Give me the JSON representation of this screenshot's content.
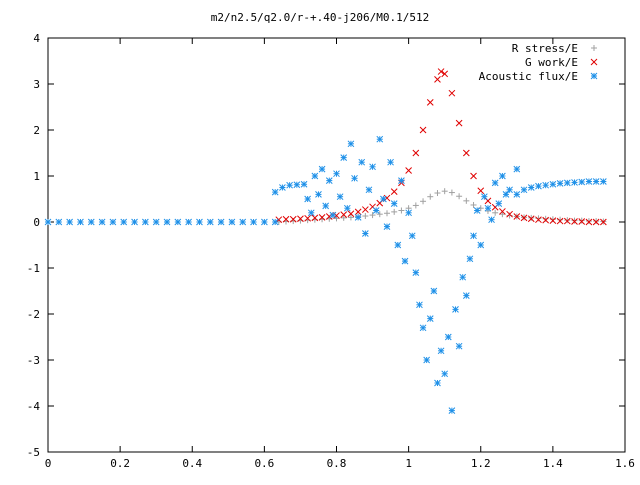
{
  "chart_data": {
    "type": "scatter",
    "title": "m2/n2.5/q2.0/r-+.40-j206/M0.1/512",
    "xlabel": "",
    "ylabel": "",
    "xlim": [
      0,
      1.6
    ],
    "ylim": [
      -5,
      4
    ],
    "x_ticks": [
      0,
      0.2,
      0.4,
      0.6,
      0.8,
      1,
      1.2,
      1.4,
      1.6
    ],
    "x_tick_labels": [
      "0",
      "0.2",
      "0.4",
      "0.6",
      "0.8",
      "1",
      "1.2",
      "1.4",
      "1.6"
    ],
    "y_ticks": [
      -5,
      -4,
      -3,
      -2,
      -1,
      0,
      1,
      2,
      3,
      4
    ],
    "y_tick_labels": [
      "-5",
      "-4",
      "-3",
      "-2",
      "-1",
      "0",
      "1",
      "2",
      "3",
      "4"
    ],
    "grid": false,
    "legend_position": "top-right",
    "series": [
      {
        "name": "R stress/E",
        "marker": "plus",
        "color": "#a0a0a0",
        "points": [
          [
            0.64,
            0.0
          ],
          [
            0.66,
            0.01
          ],
          [
            0.68,
            0.02
          ],
          [
            0.7,
            0.03
          ],
          [
            0.72,
            0.04
          ],
          [
            0.74,
            0.05
          ],
          [
            0.76,
            0.06
          ],
          [
            0.78,
            0.07
          ],
          [
            0.8,
            0.08
          ],
          [
            0.82,
            0.09
          ],
          [
            0.84,
            0.1
          ],
          [
            0.86,
            0.12
          ],
          [
            0.88,
            0.13
          ],
          [
            0.9,
            0.15
          ],
          [
            0.92,
            0.17
          ],
          [
            0.94,
            0.19
          ],
          [
            0.96,
            0.22
          ],
          [
            0.98,
            0.25
          ],
          [
            1.0,
            0.3
          ],
          [
            1.02,
            0.36
          ],
          [
            1.04,
            0.45
          ],
          [
            1.06,
            0.55
          ],
          [
            1.08,
            0.63
          ],
          [
            1.1,
            0.67
          ],
          [
            1.12,
            0.64
          ],
          [
            1.14,
            0.56
          ],
          [
            1.16,
            0.46
          ],
          [
            1.18,
            0.37
          ],
          [
            1.2,
            0.3
          ],
          [
            1.22,
            0.24
          ],
          [
            1.24,
            0.2
          ],
          [
            1.26,
            0.17
          ],
          [
            1.28,
            0.14
          ],
          [
            1.3,
            0.12
          ],
          [
            1.32,
            0.1
          ],
          [
            1.34,
            0.09
          ],
          [
            1.36,
            0.08
          ],
          [
            1.38,
            0.07
          ],
          [
            1.4,
            0.06
          ],
          [
            1.42,
            0.05
          ],
          [
            1.44,
            0.04
          ],
          [
            1.46,
            0.03
          ],
          [
            1.48,
            0.03
          ],
          [
            1.5,
            0.02
          ],
          [
            1.52,
            0.02
          ],
          [
            1.54,
            0.01
          ]
        ]
      },
      {
        "name": "G work/E",
        "marker": "cross",
        "color": "#e00000",
        "points": [
          [
            0.64,
            0.05
          ],
          [
            0.66,
            0.06
          ],
          [
            0.68,
            0.06
          ],
          [
            0.7,
            0.07
          ],
          [
            0.72,
            0.08
          ],
          [
            0.74,
            0.09
          ],
          [
            0.76,
            0.1
          ],
          [
            0.78,
            0.12
          ],
          [
            0.8,
            0.14
          ],
          [
            0.82,
            0.16
          ],
          [
            0.84,
            0.18
          ],
          [
            0.86,
            0.22
          ],
          [
            0.88,
            0.27
          ],
          [
            0.9,
            0.33
          ],
          [
            0.92,
            0.41
          ],
          [
            0.94,
            0.52
          ],
          [
            0.96,
            0.66
          ],
          [
            0.98,
            0.85
          ],
          [
            1.0,
            1.12
          ],
          [
            1.02,
            1.5
          ],
          [
            1.04,
            2.0
          ],
          [
            1.06,
            2.6
          ],
          [
            1.08,
            3.1
          ],
          [
            1.09,
            3.27
          ],
          [
            1.1,
            3.22
          ],
          [
            1.12,
            2.8
          ],
          [
            1.14,
            2.15
          ],
          [
            1.16,
            1.5
          ],
          [
            1.18,
            1.0
          ],
          [
            1.2,
            0.68
          ],
          [
            1.22,
            0.46
          ],
          [
            1.24,
            0.32
          ],
          [
            1.26,
            0.23
          ],
          [
            1.28,
            0.17
          ],
          [
            1.3,
            0.12
          ],
          [
            1.32,
            0.09
          ],
          [
            1.34,
            0.07
          ],
          [
            1.36,
            0.05
          ],
          [
            1.38,
            0.04
          ],
          [
            1.4,
            0.03
          ],
          [
            1.42,
            0.02
          ],
          [
            1.44,
            0.02
          ],
          [
            1.46,
            0.01
          ],
          [
            1.48,
            0.01
          ],
          [
            1.5,
            0.0
          ],
          [
            1.52,
            0.0
          ],
          [
            1.54,
            0.0
          ]
        ]
      },
      {
        "name": "Acoustic flux/E",
        "marker": "star",
        "color": "#1e90e8",
        "points": [
          [
            0.0,
            0.0
          ],
          [
            0.03,
            0.0
          ],
          [
            0.06,
            0.0
          ],
          [
            0.09,
            0.0
          ],
          [
            0.12,
            0.0
          ],
          [
            0.15,
            0.0
          ],
          [
            0.18,
            0.0
          ],
          [
            0.21,
            0.0
          ],
          [
            0.24,
            0.0
          ],
          [
            0.27,
            0.0
          ],
          [
            0.3,
            0.0
          ],
          [
            0.33,
            0.0
          ],
          [
            0.36,
            0.0
          ],
          [
            0.39,
            0.0
          ],
          [
            0.42,
            0.0
          ],
          [
            0.45,
            0.0
          ],
          [
            0.48,
            0.0
          ],
          [
            0.51,
            0.0
          ],
          [
            0.54,
            0.0
          ],
          [
            0.57,
            0.0
          ],
          [
            0.6,
            0.0
          ],
          [
            0.63,
            0.0
          ],
          [
            0.63,
            0.65
          ],
          [
            0.65,
            0.75
          ],
          [
            0.67,
            0.8
          ],
          [
            0.69,
            0.81
          ],
          [
            0.71,
            0.82
          ],
          [
            0.72,
            0.5
          ],
          [
            0.73,
            0.2
          ],
          [
            0.74,
            1.0
          ],
          [
            0.75,
            0.6
          ],
          [
            0.76,
            1.15
          ],
          [
            0.77,
            0.35
          ],
          [
            0.78,
            0.9
          ],
          [
            0.79,
            0.15
          ],
          [
            0.8,
            1.05
          ],
          [
            0.81,
            0.55
          ],
          [
            0.82,
            1.4
          ],
          [
            0.83,
            0.3
          ],
          [
            0.84,
            1.7
          ],
          [
            0.85,
            0.95
          ],
          [
            0.86,
            0.1
          ],
          [
            0.87,
            1.3
          ],
          [
            0.88,
            -0.25
          ],
          [
            0.89,
            0.7
          ],
          [
            0.9,
            1.2
          ],
          [
            0.91,
            0.25
          ],
          [
            0.92,
            1.8
          ],
          [
            0.93,
            0.5
          ],
          [
            0.94,
            -0.1
          ],
          [
            0.95,
            1.3
          ],
          [
            0.96,
            0.4
          ],
          [
            0.97,
            -0.5
          ],
          [
            0.98,
            0.9
          ],
          [
            0.99,
            -0.85
          ],
          [
            1.0,
            0.2
          ],
          [
            1.01,
            -0.3
          ],
          [
            1.02,
            -1.1
          ],
          [
            1.03,
            -1.8
          ],
          [
            1.04,
            -2.3
          ],
          [
            1.05,
            -3.0
          ],
          [
            1.06,
            -2.1
          ],
          [
            1.07,
            -1.5
          ],
          [
            1.08,
            -3.5
          ],
          [
            1.09,
            -2.8
          ],
          [
            1.1,
            -3.3
          ],
          [
            1.11,
            -2.5
          ],
          [
            1.12,
            -4.1
          ],
          [
            1.13,
            -1.9
          ],
          [
            1.14,
            -2.7
          ],
          [
            1.15,
            -1.2
          ],
          [
            1.16,
            -1.6
          ],
          [
            1.17,
            -0.8
          ],
          [
            1.18,
            -0.3
          ],
          [
            1.19,
            0.25
          ],
          [
            1.2,
            -0.5
          ],
          [
            1.21,
            0.55
          ],
          [
            1.22,
            0.3
          ],
          [
            1.23,
            0.05
          ],
          [
            1.24,
            0.85
          ],
          [
            1.25,
            0.4
          ],
          [
            1.26,
            1.0
          ],
          [
            1.27,
            0.6
          ],
          [
            1.28,
            0.7
          ],
          [
            1.3,
            1.15
          ],
          [
            1.3,
            0.6
          ],
          [
            1.32,
            0.7
          ],
          [
            1.34,
            0.75
          ],
          [
            1.36,
            0.78
          ],
          [
            1.38,
            0.8
          ],
          [
            1.4,
            0.82
          ],
          [
            1.42,
            0.84
          ],
          [
            1.44,
            0.85
          ],
          [
            1.46,
            0.86
          ],
          [
            1.48,
            0.87
          ],
          [
            1.5,
            0.88
          ],
          [
            1.52,
            0.88
          ],
          [
            1.54,
            0.88
          ]
        ]
      }
    ]
  }
}
